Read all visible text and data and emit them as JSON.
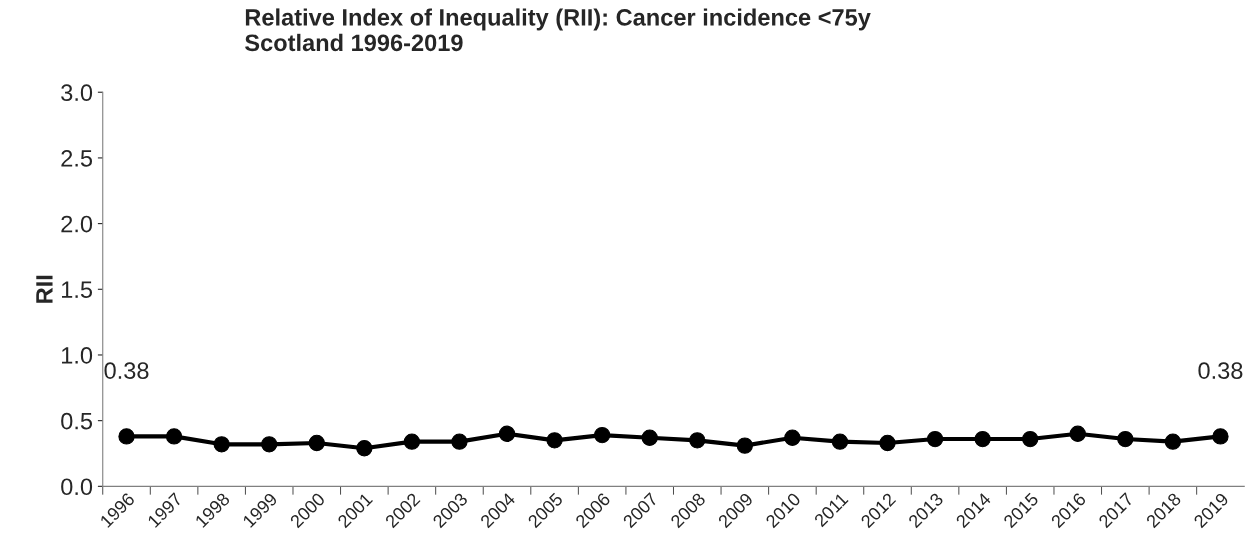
{
  "chart_data": {
    "type": "line",
    "title": "Relative Index of Inequality (RII): Cancer incidence <75y\nScotland 1996-2019",
    "ylabel": "RII",
    "categories": [
      "1996",
      "1997",
      "1998",
      "1999",
      "2000",
      "2001",
      "2002",
      "2003",
      "2004",
      "2005",
      "2006",
      "2007",
      "2008",
      "2009",
      "2010",
      "2011",
      "2012",
      "2013",
      "2014",
      "2015",
      "2016",
      "2017",
      "2018",
      "2019"
    ],
    "series": [
      {
        "color": "#000000",
        "values": [
          0.38,
          0.38,
          0.32,
          0.32,
          0.33,
          0.29,
          0.34,
          0.34,
          0.4,
          0.35,
          0.39,
          0.37,
          0.35,
          0.31,
          0.37,
          0.34,
          0.33,
          0.36,
          0.36,
          0.36,
          0.4,
          0.36,
          0.34,
          0.38
        ],
        "value_labels": [
          "0.38",
          null,
          null,
          null,
          null,
          null,
          null,
          null,
          null,
          null,
          null,
          null,
          null,
          null,
          null,
          null,
          null,
          null,
          null,
          null,
          null,
          null,
          null,
          "0.38"
        ]
      }
    ],
    "ylim": [
      0,
      3
    ],
    "yticks": [
      {
        "value": 0,
        "label": "0.0"
      },
      {
        "value": 0.5,
        "label": "0.5"
      },
      {
        "value": 1,
        "label": "1.0"
      },
      {
        "value": 1.5,
        "label": "1.5"
      },
      {
        "value": 2,
        "label": "2.0"
      },
      {
        "value": 2.5,
        "label": "2.5"
      },
      {
        "value": 3,
        "label": "3.0"
      }
    ],
    "marker": "circle",
    "line_style": "solid",
    "grid": false,
    "legend": false
  }
}
